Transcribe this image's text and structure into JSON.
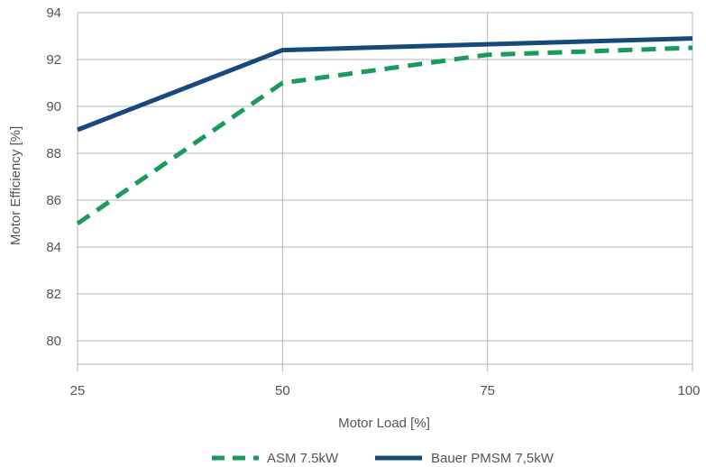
{
  "chart_data": {
    "type": "line",
    "title": "",
    "xlabel": "Motor Load [%]",
    "ylabel": "Motor Efficiency [%]",
    "x": [
      25,
      50,
      75,
      100
    ],
    "x_ticks": [
      "25",
      "50",
      "75",
      "100"
    ],
    "xlim": [
      25,
      100
    ],
    "y_ticks": [
      "80",
      "82",
      "84",
      "86",
      "88",
      "90",
      "92",
      "94"
    ],
    "ylim": [
      79,
      94
    ],
    "grid": true,
    "legend_position": "bottom",
    "series": [
      {
        "name": "ASM 7.5kW",
        "values": [
          85.0,
          91.0,
          92.2,
          92.5
        ],
        "color": "#1a9a5c",
        "style": "dashed"
      },
      {
        "name": "Bauer PMSM 7,5kW",
        "values": [
          89.0,
          92.4,
          92.65,
          92.9
        ],
        "color": "#174a7c",
        "style": "solid"
      }
    ]
  }
}
